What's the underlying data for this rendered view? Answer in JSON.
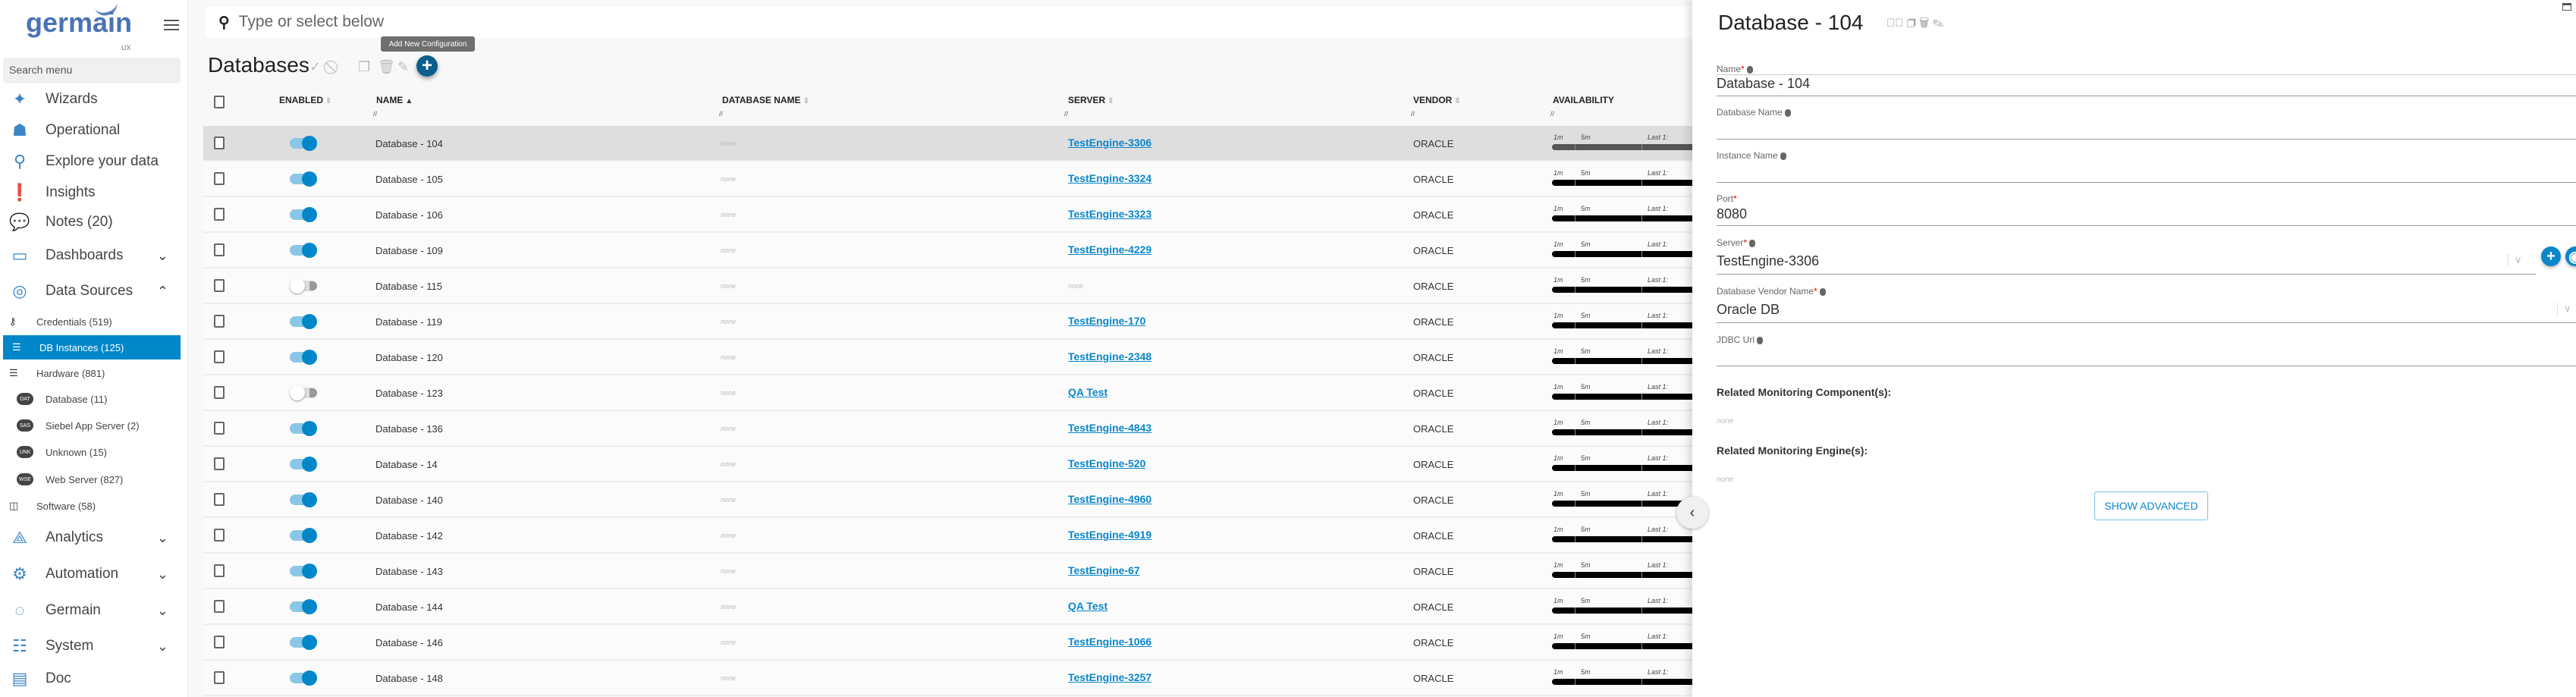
{
  "sidebar": {
    "logo_text": "germain",
    "logo_sub": "UX",
    "search_placeholder": "Search menu",
    "items": [
      {
        "label": "Wizards",
        "icon": "magic-wand-icon"
      },
      {
        "label": "Operational",
        "icon": "sitemap-icon"
      },
      {
        "label": "Explore your data",
        "icon": "search-icon"
      },
      {
        "label": "Insights",
        "icon": "exclamation-icon"
      },
      {
        "label": "Notes (20)",
        "icon": "chat-icon"
      },
      {
        "label": "Dashboards",
        "icon": "monitor-icon",
        "expanded": false
      },
      {
        "label": "Data Sources",
        "icon": "data-source-icon",
        "expanded": true
      }
    ],
    "data_sources": [
      {
        "label": "Credentials (519)",
        "icon": "key-icon"
      },
      {
        "label": "DB Instances (125)",
        "icon": "database-icon",
        "active": true
      },
      {
        "label": "Hardware (881)",
        "icon": "server-icon"
      }
    ],
    "hardware": [
      {
        "badge": "DAT",
        "label": "Database (11)"
      },
      {
        "badge": "SAS",
        "label": "Siebel App Server (2)"
      },
      {
        "badge": "UNK",
        "label": "Unknown (15)"
      },
      {
        "badge": "WSE",
        "label": "Web Server (827)"
      }
    ],
    "software": {
      "label": "Software (58)",
      "icon": "software-icon"
    },
    "bottom_items": [
      {
        "label": "Analytics",
        "icon": "analytics-icon"
      },
      {
        "label": "Automation",
        "icon": "gear-icon"
      },
      {
        "label": "Germain",
        "icon": "germain-ring-icon"
      },
      {
        "label": "System",
        "icon": "sliders-icon"
      }
    ],
    "doc": {
      "label": "Doc",
      "icon": "book-icon"
    }
  },
  "search": {
    "placeholder": "Type or select below"
  },
  "tooltip": "Add New Configuration",
  "page_title": "Databases",
  "columns": {
    "enabled": "ENABLED",
    "name": "NAME",
    "database_name": "DATABASE NAME",
    "server": "SERVER",
    "vendor": "VENDOR",
    "availability": "AVAILABILITY"
  },
  "availability_labels": {
    "one": "1m",
    "five": "5m",
    "last": "Last 1:"
  },
  "rows": [
    {
      "name": "Database - 104",
      "enabled": true,
      "database_name": "none",
      "server": "TestEngine-3306",
      "vendor": "ORACLE",
      "selected": true
    },
    {
      "name": "Database - 105",
      "enabled": true,
      "database_name": "none",
      "server": "TestEngine-3324",
      "vendor": "ORACLE"
    },
    {
      "name": "Database - 106",
      "enabled": true,
      "database_name": "none",
      "server": "TestEngine-3323",
      "vendor": "ORACLE"
    },
    {
      "name": "Database - 109",
      "enabled": true,
      "database_name": "none",
      "server": "TestEngine-4229",
      "vendor": "ORACLE"
    },
    {
      "name": "Database - 115",
      "enabled": false,
      "database_name": "none",
      "server": "none",
      "vendor": "ORACLE"
    },
    {
      "name": "Database - 119",
      "enabled": true,
      "database_name": "none",
      "server": "TestEngine-170",
      "vendor": "ORACLE"
    },
    {
      "name": "Database - 120",
      "enabled": true,
      "database_name": "none",
      "server": "TestEngine-2348",
      "vendor": "ORACLE"
    },
    {
      "name": "Database - 123",
      "enabled": false,
      "database_name": "none",
      "server": "QA Test",
      "vendor": "ORACLE"
    },
    {
      "name": "Database - 136",
      "enabled": true,
      "database_name": "none",
      "server": "TestEngine-4843",
      "vendor": "ORACLE"
    },
    {
      "name": "Database - 14",
      "enabled": true,
      "database_name": "none",
      "server": "TestEngine-520",
      "vendor": "ORACLE"
    },
    {
      "name": "Database - 140",
      "enabled": true,
      "database_name": "none",
      "server": "TestEngine-4960",
      "vendor": "ORACLE"
    },
    {
      "name": "Database - 142",
      "enabled": true,
      "database_name": "none",
      "server": "TestEngine-4919",
      "vendor": "ORACLE"
    },
    {
      "name": "Database - 143",
      "enabled": true,
      "database_name": "none",
      "server": "TestEngine-67",
      "vendor": "ORACLE"
    },
    {
      "name": "Database - 144",
      "enabled": true,
      "database_name": "none",
      "server": "QA Test",
      "vendor": "ORACLE"
    },
    {
      "name": "Database - 146",
      "enabled": true,
      "database_name": "none",
      "server": "TestEngine-1066",
      "vendor": "ORACLE"
    },
    {
      "name": "Database - 148",
      "enabled": true,
      "database_name": "none",
      "server": "TestEngine-3257",
      "vendor": "ORACLE"
    }
  ],
  "panel": {
    "title": "Database - 104",
    "fields": {
      "name": {
        "label": "Name",
        "value": "Database - 104"
      },
      "database_name": {
        "label": "Database Name",
        "value": ""
      },
      "instance_name": {
        "label": "Instance Name",
        "value": ""
      },
      "port": {
        "label": "Port",
        "value": "8080"
      },
      "server": {
        "label": "Server",
        "value": "TestEngine-3306"
      },
      "vendor": {
        "label": "Database Vendor Name",
        "value": "Oracle DB"
      },
      "jdbc": {
        "label": "JDBC Url",
        "value": ""
      }
    },
    "related_components": {
      "label": "Related Monitoring Component(s):",
      "value": "none"
    },
    "related_engines": {
      "label": "Related Monitoring Engine(s):",
      "value": "none"
    },
    "show_advanced": "SHOW ADVANCED"
  },
  "colors": {
    "accent": "#0087c9",
    "add_button": "#0b5f8d",
    "selected_row": "#dedede"
  }
}
